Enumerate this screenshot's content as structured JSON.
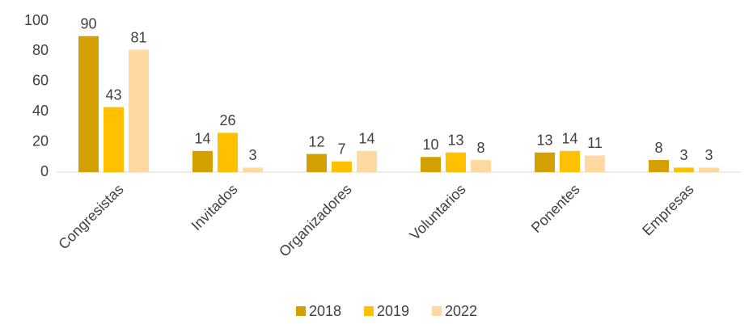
{
  "chart_data": {
    "type": "bar",
    "categories": [
      "Congresistas",
      "Invitados",
      "Organizadores",
      "Voluntarios",
      "Ponentes",
      "Empresas"
    ],
    "series": [
      {
        "name": "2018",
        "color": "#d4a000",
        "values": [
          90,
          14,
          12,
          10,
          13,
          8
        ]
      },
      {
        "name": "2019",
        "color": "#ffc000",
        "values": [
          43,
          26,
          7,
          13,
          14,
          3
        ]
      },
      {
        "name": "2022",
        "color": "#ffd9a0",
        "values": [
          81,
          3,
          14,
          8,
          11,
          3
        ]
      }
    ],
    "ylim": [
      0,
      100
    ],
    "yticks": [
      0,
      20,
      40,
      60,
      80,
      100
    ],
    "grid": false,
    "legend": "bottom"
  }
}
